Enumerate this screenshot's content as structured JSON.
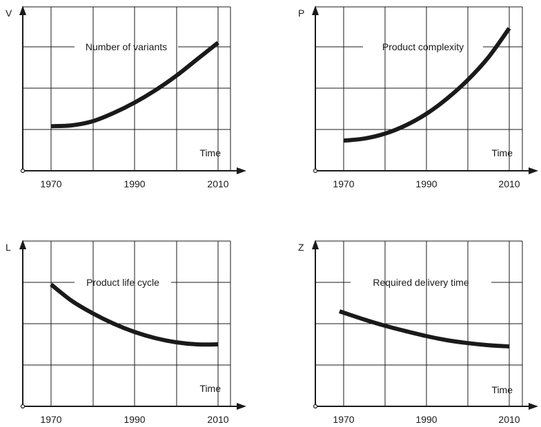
{
  "chart_data": [
    {
      "type": "line",
      "ylabel": "V",
      "xlabel": "Time",
      "annotation": "Number of variants",
      "x_ticks": [
        "1970",
        "1990",
        "2010"
      ],
      "xlim": [
        1970,
        2010
      ],
      "ylim": [
        0,
        4
      ],
      "grid": true,
      "series": [
        {
          "x": [
            1970,
            1975,
            1980,
            1985,
            1990,
            1995,
            2000,
            2005,
            2010
          ],
          "values": [
            1.08,
            1.1,
            1.2,
            1.4,
            1.65,
            1.95,
            2.3,
            2.7,
            3.1
          ]
        }
      ]
    },
    {
      "type": "line",
      "ylabel": "P",
      "xlabel": "Time",
      "annotation": "Product complexity",
      "x_ticks": [
        "1970",
        "1990",
        "2010"
      ],
      "xlim": [
        1970,
        2010
      ],
      "ylim": [
        0,
        4
      ],
      "grid": true,
      "series": [
        {
          "x": [
            1970,
            1975,
            1980,
            1985,
            1990,
            1995,
            2000,
            2005,
            2010
          ],
          "values": [
            0.73,
            0.78,
            0.9,
            1.1,
            1.38,
            1.75,
            2.2,
            2.75,
            3.45
          ]
        }
      ]
    },
    {
      "type": "line",
      "ylabel": "L",
      "xlabel": "Time",
      "annotation": "Product life cycle",
      "x_ticks": [
        "1970",
        "1990",
        "2010"
      ],
      "xlim": [
        1970,
        2010
      ],
      "ylim": [
        0,
        4
      ],
      "grid": true,
      "series": [
        {
          "x": [
            1970,
            1975,
            1980,
            1985,
            1990,
            1995,
            2000,
            2005,
            2010
          ],
          "values": [
            2.95,
            2.55,
            2.25,
            2.0,
            1.8,
            1.65,
            1.55,
            1.5,
            1.5
          ]
        }
      ]
    },
    {
      "type": "line",
      "ylabel": "Z",
      "xlabel": "Time",
      "annotation": "Required delivery time",
      "x_ticks": [
        "1970",
        "1990",
        "2010"
      ],
      "xlim": [
        1970,
        2010
      ],
      "ylim": [
        0,
        4
      ],
      "grid": true,
      "series": [
        {
          "x": [
            1969,
            1975,
            1980,
            1985,
            1990,
            1995,
            2000,
            2005,
            2010
          ],
          "values": [
            2.3,
            2.1,
            1.95,
            1.82,
            1.7,
            1.6,
            1.53,
            1.48,
            1.45
          ]
        }
      ]
    }
  ],
  "colors": {
    "ink": "#1a1a1a",
    "background": "#ffffff"
  }
}
